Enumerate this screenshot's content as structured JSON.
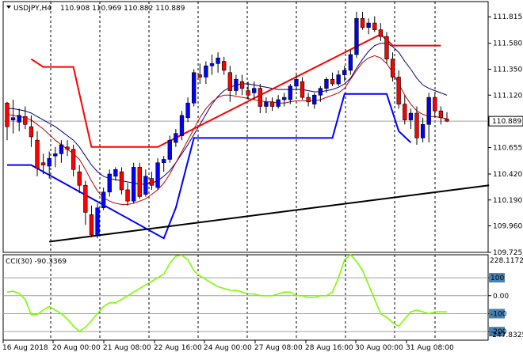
{
  "header": {
    "symbol": "USDJPY,H4",
    "ohlc": "110.908 110.969 110.882 110.889"
  },
  "cci": {
    "label": "CCI(30) -90.3369",
    "top_label": "228.1172",
    "bottom_label": "-247.8325",
    "levels": [
      {
        "label": "100",
        "value": 100
      },
      {
        "label": "0.00",
        "value": 0
      },
      {
        "label": "-100",
        "value": -100
      },
      {
        "label": "-200",
        "value": -200
      }
    ],
    "ylim": [
      -247.8325,
      228.1172
    ]
  },
  "chart_data": [
    {
      "type": "candlestick",
      "title": "USDJPY,H4",
      "ylim": [
        109.725,
        111.95
      ],
      "y_ticks": [
        "111.815",
        "111.580",
        "111.350",
        "111.120",
        "110.889",
        "110.655",
        "110.420",
        "110.190",
        "109.960",
        "109.725"
      ],
      "current_price": "110.889",
      "x_ticks": [
        "16 Aug 2018",
        "20 Aug 00:00",
        "21 Aug 08:00",
        "22 Aug 16:00",
        "24 Aug 00:00",
        "27 Aug 08:00",
        "28 Aug 16:00",
        "30 Aug 00:00",
        "31 Aug 08:00"
      ],
      "candles": [
        [
          111.05,
          111.06,
          110.72,
          110.84
        ],
        [
          110.9,
          111.08,
          110.78,
          110.92
        ],
        [
          110.88,
          111.0,
          110.8,
          110.94
        ],
        [
          110.93,
          111.02,
          110.82,
          110.86
        ],
        [
          110.84,
          110.94,
          110.66,
          110.75
        ],
        [
          110.72,
          110.8,
          110.4,
          110.47
        ],
        [
          110.52,
          110.6,
          110.42,
          110.5
        ],
        [
          110.49,
          110.62,
          110.38,
          110.56
        ],
        [
          110.58,
          110.66,
          110.48,
          110.6
        ],
        [
          110.6,
          110.72,
          110.52,
          110.68
        ],
        [
          110.66,
          110.72,
          110.58,
          110.64
        ],
        [
          110.64,
          110.68,
          110.4,
          110.46
        ],
        [
          110.44,
          110.5,
          110.25,
          110.32
        ],
        [
          110.32,
          110.36,
          109.97,
          110.08
        ],
        [
          110.06,
          110.14,
          109.86,
          109.88
        ],
        [
          109.88,
          110.16,
          109.85,
          110.12
        ],
        [
          110.12,
          110.3,
          110.1,
          110.26
        ],
        [
          110.26,
          110.46,
          110.22,
          110.42
        ],
        [
          110.4,
          110.48,
          110.36,
          110.46
        ],
        [
          110.44,
          110.48,
          110.24,
          110.28
        ],
        [
          110.28,
          110.34,
          110.14,
          110.18
        ],
        [
          110.18,
          110.52,
          110.16,
          110.48
        ],
        [
          110.48,
          110.52,
          110.2,
          110.22
        ],
        [
          110.24,
          110.46,
          110.22,
          110.4
        ],
        [
          110.38,
          110.44,
          110.28,
          110.32
        ],
        [
          110.3,
          110.56,
          110.28,
          110.52
        ],
        [
          110.52,
          110.58,
          110.44,
          110.55
        ],
        [
          110.55,
          110.76,
          110.52,
          110.72
        ],
        [
          110.7,
          110.82,
          110.66,
          110.78
        ],
        [
          110.76,
          110.98,
          110.72,
          110.94
        ],
        [
          110.92,
          111.1,
          110.88,
          111.05
        ],
        [
          111.05,
          111.35,
          111.02,
          111.32
        ],
        [
          111.3,
          111.4,
          111.22,
          111.28
        ],
        [
          111.28,
          111.42,
          111.22,
          111.38
        ],
        [
          111.38,
          111.48,
          111.3,
          111.4
        ],
        [
          111.4,
          111.5,
          111.32,
          111.45
        ],
        [
          111.42,
          111.46,
          111.3,
          111.34
        ],
        [
          111.32,
          111.38,
          111.06,
          111.16
        ],
        [
          111.16,
          111.3,
          111.12,
          111.26
        ],
        [
          111.24,
          111.3,
          111.12,
          111.18
        ],
        [
          111.16,
          111.24,
          111.08,
          111.12
        ],
        [
          111.14,
          111.24,
          111.08,
          111.18
        ],
        [
          111.18,
          111.22,
          110.96,
          111.02
        ],
        [
          111.02,
          111.1,
          110.96,
          111.06
        ],
        [
          111.06,
          111.1,
          110.98,
          111.02
        ],
        [
          111.02,
          111.12,
          111.0,
          111.08
        ],
        [
          111.08,
          111.14,
          111.02,
          111.1
        ],
        [
          111.08,
          111.22,
          111.04,
          111.2
        ],
        [
          111.2,
          111.32,
          111.16,
          111.26
        ],
        [
          111.24,
          111.28,
          111.08,
          111.1
        ],
        [
          111.1,
          111.14,
          111.02,
          111.06
        ],
        [
          111.04,
          111.14,
          111.0,
          111.12
        ],
        [
          111.12,
          111.2,
          111.06,
          111.18
        ],
        [
          111.18,
          111.28,
          111.14,
          111.26
        ],
        [
          111.26,
          111.32,
          111.2,
          111.22
        ],
        [
          111.22,
          111.34,
          111.2,
          111.3
        ],
        [
          111.3,
          111.38,
          111.24,
          111.34
        ],
        [
          111.34,
          111.52,
          111.3,
          111.48
        ],
        [
          111.48,
          111.86,
          111.45,
          111.8
        ],
        [
          111.8,
          111.86,
          111.7,
          111.72
        ],
        [
          111.72,
          111.8,
          111.66,
          111.76
        ],
        [
          111.76,
          111.82,
          111.68,
          111.7
        ],
        [
          111.7,
          111.76,
          111.6,
          111.64
        ],
        [
          111.64,
          111.68,
          111.4,
          111.44
        ],
        [
          111.44,
          111.5,
          111.24,
          111.28
        ],
        [
          111.28,
          111.34,
          111.0,
          111.04
        ],
        [
          111.04,
          111.12,
          110.86,
          110.9
        ],
        [
          110.9,
          111.0,
          110.82,
          110.96
        ],
        [
          110.96,
          111.02,
          110.68,
          110.74
        ],
        [
          110.74,
          110.92,
          110.7,
          110.86
        ],
        [
          110.86,
          111.14,
          110.7,
          111.1
        ],
        [
          111.1,
          111.14,
          110.92,
          110.98
        ],
        [
          110.98,
          111.02,
          110.86,
          110.92
        ],
        [
          110.908,
          110.969,
          110.882,
          110.889
        ]
      ],
      "overlays": [
        {
          "name": "ma_slow",
          "color": "#000080",
          "values": [
            111.0,
            111.0,
            110.99,
            110.98,
            110.96,
            110.93,
            110.9,
            110.87,
            110.84,
            110.8,
            110.76,
            110.72,
            110.66,
            110.58,
            110.5,
            110.44,
            110.4,
            110.38,
            110.37,
            110.36,
            110.35,
            110.34,
            110.33,
            110.33,
            110.34,
            110.36,
            110.4,
            110.45,
            110.52,
            110.6,
            110.68,
            110.77,
            110.86,
            110.95,
            111.04,
            111.11,
            111.16,
            111.19,
            111.21,
            111.22,
            111.22,
            111.21,
            111.2,
            111.19,
            111.18,
            111.17,
            111.17,
            111.17,
            111.17,
            111.17,
            111.16,
            111.15,
            111.15,
            111.16,
            111.17,
            111.19,
            111.22,
            111.27,
            111.36,
            111.44,
            111.51,
            111.56,
            111.58,
            111.58,
            111.55,
            111.5,
            111.42,
            111.35,
            111.27,
            111.21,
            111.18,
            111.16,
            111.14,
            111.12
          ]
        },
        {
          "name": "ma_fast",
          "color": "#c00000",
          "values": [
            110.95,
            110.94,
            110.93,
            110.92,
            110.9,
            110.86,
            110.82,
            110.77,
            110.72,
            110.68,
            110.64,
            110.6,
            110.55,
            110.46,
            110.36,
            110.27,
            110.21,
            110.18,
            110.16,
            110.15,
            110.15,
            110.16,
            110.18,
            110.2,
            110.24,
            110.28,
            110.34,
            110.42,
            110.52,
            110.62,
            110.72,
            110.82,
            110.92,
            111.0,
            111.06,
            111.1,
            111.12,
            111.12,
            111.11,
            111.1,
            111.09,
            111.08,
            111.07,
            111.06,
            111.06,
            111.05,
            111.05,
            111.06,
            111.07,
            111.07,
            111.07,
            111.07,
            111.08,
            111.1,
            111.12,
            111.14,
            111.18,
            111.26,
            111.34,
            111.41,
            111.45,
            111.47,
            111.45,
            111.4,
            111.32,
            111.22,
            111.12,
            111.04,
            110.98,
            110.95,
            110.93,
            110.93,
            110.92,
            110.91
          ]
        },
        {
          "name": "upper_step",
          "color": "#ff0000",
          "points": [
            [
              4,
              111.44
            ],
            [
              6,
              111.37
            ],
            [
              11,
              111.37
            ],
            [
              14,
              110.66
            ],
            [
              25,
              110.66
            ],
            [
              62,
              111.66
            ],
            [
              64,
              111.56
            ],
            [
              70,
              111.56
            ],
            [
              72,
              111.56
            ]
          ]
        },
        {
          "name": "lower_step",
          "color": "#0000ff",
          "points": [
            [
              0,
              110.5
            ],
            [
              4,
              110.5
            ],
            [
              26,
              109.85
            ],
            [
              28,
              110.12
            ],
            [
              31,
              110.74
            ],
            [
              42,
              110.74
            ],
            [
              54,
              110.74
            ],
            [
              56,
              111.13
            ],
            [
              63,
              111.13
            ],
            [
              65,
              110.8
            ],
            [
              67,
              110.7
            ]
          ]
        },
        {
          "name": "trendline",
          "color": "#000000",
          "points": [
            [
              7,
              109.82
            ],
            [
              80,
              110.32
            ]
          ]
        }
      ]
    },
    {
      "type": "line",
      "title": "CCI(30) -90.3369",
      "ylim": [
        -247.8325,
        228.1172
      ],
      "series": [
        {
          "values": [
            20,
            25,
            12,
            -20,
            -105,
            -105,
            -80,
            -60,
            -80,
            -100,
            -130,
            -170,
            -200,
            -175,
            -140,
            -100,
            -60,
            -40,
            -40,
            -20,
            0,
            20,
            40,
            60,
            80,
            100,
            120,
            180,
            220,
            225,
            200,
            140,
            110,
            90,
            70,
            50,
            40,
            30,
            30,
            20,
            10,
            10,
            0,
            0,
            0,
            10,
            20,
            20,
            0,
            0,
            -10,
            -10,
            0,
            0,
            20,
            100,
            200,
            228,
            190,
            140,
            60,
            -20,
            -100,
            -120,
            -150,
            -170,
            -130,
            -90,
            -80,
            -90,
            -100,
            -90,
            -90,
            -90
          ]
        }
      ]
    }
  ]
}
